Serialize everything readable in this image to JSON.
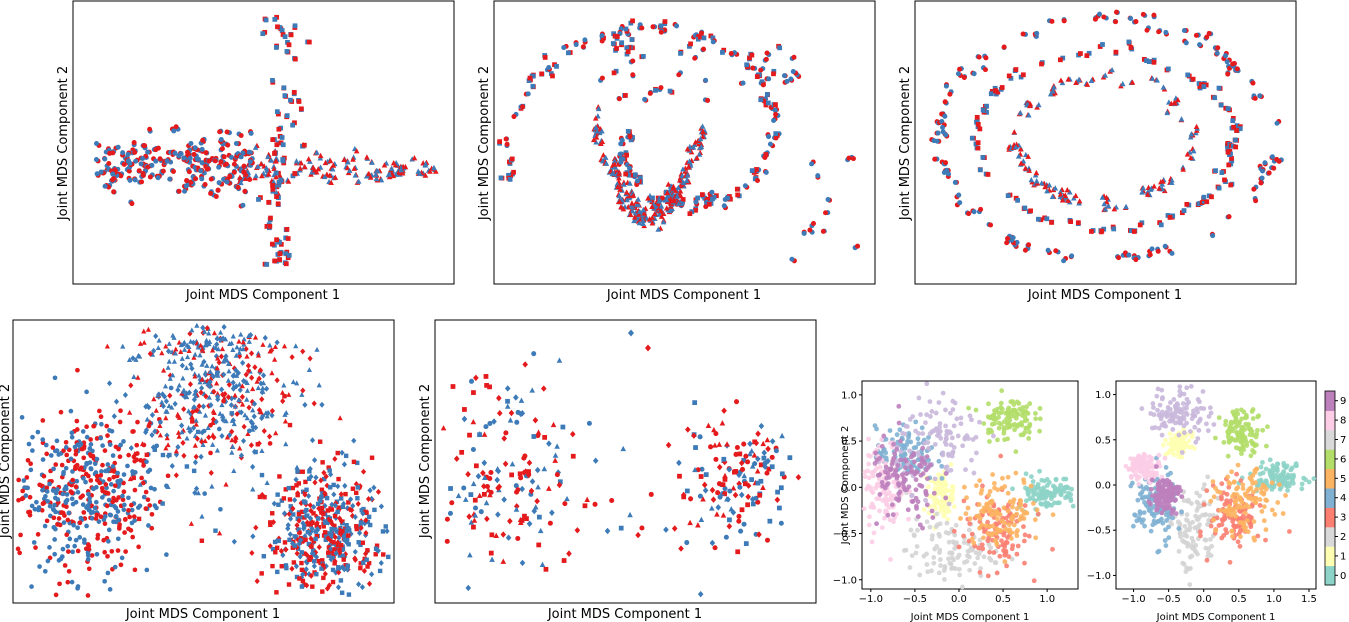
{
  "colors": {
    "red": "#e41a1c",
    "blue": "#3d7ab8"
  },
  "chart_data": [
    {
      "id": "p1",
      "type": "scatter",
      "xlabel": "Joint MDS Component 1",
      "ylabel": "Joint MDS Component 2",
      "shape": "cross",
      "axis_ticks": false,
      "grid": false,
      "markers": [
        "circle",
        "triangle",
        "square"
      ],
      "series_colors": [
        "red",
        "blue"
      ]
    },
    {
      "id": "p2",
      "type": "scatter",
      "xlabel": "Joint MDS Component 1",
      "ylabel": "Joint MDS Component 2",
      "shape": "swiss-roll",
      "axis_ticks": false,
      "grid": false,
      "markers": [
        "circle",
        "triangle",
        "square"
      ],
      "series_colors": [
        "red",
        "blue"
      ]
    },
    {
      "id": "p3",
      "type": "scatter",
      "xlabel": "Joint MDS Component 1",
      "ylabel": "Joint MDS Component 2",
      "shape": "concentric-rings",
      "axis_ticks": false,
      "grid": false,
      "markers": [
        "circle",
        "triangle",
        "square"
      ],
      "series_colors": [
        "red",
        "blue"
      ]
    },
    {
      "id": "p4",
      "type": "scatter",
      "xlabel": "Joint MDS Component 1",
      "ylabel": "Joint MDS Component 2",
      "shape": "three-clusters-dense",
      "axis_ticks": false,
      "grid": false,
      "markers": [
        "circle",
        "triangle",
        "square",
        "diamond"
      ],
      "series_colors": [
        "red",
        "blue"
      ]
    },
    {
      "id": "p5",
      "type": "scatter",
      "xlabel": "Joint MDS Component 1",
      "ylabel": "Joint MDS Component 2",
      "shape": "two-clusters-sparse",
      "axis_ticks": false,
      "grid": false,
      "markers": [
        "circle",
        "triangle",
        "square",
        "diamond"
      ],
      "series_colors": [
        "red",
        "blue"
      ]
    },
    {
      "id": "p6",
      "type": "scatter",
      "xlabel": "Joint MDS Component 1",
      "ylabel": "Joint MDS Component 2",
      "xlim": [
        -1.1,
        1.35
      ],
      "ylim": [
        -1.1,
        1.15
      ],
      "xticks": [
        "−1.0",
        "−0.5",
        "0.0",
        "0.5",
        "1.0"
      ],
      "yticks": [
        "−1.0",
        "−0.5",
        "0.0",
        "0.5",
        "1.0"
      ],
      "xtick_values": [
        -1.0,
        -0.5,
        0.0,
        0.5,
        1.0
      ],
      "ytick_values": [
        -1.0,
        -0.5,
        0.0,
        0.5,
        1.0
      ],
      "color_by": "digit class 0–9",
      "clusters": [
        {
          "cls": 0,
          "cx": 1.0,
          "cy": -0.05,
          "sx": 0.17,
          "sy": 0.09
        },
        {
          "cls": 1,
          "cx": -0.2,
          "cy": -0.08,
          "sx": 0.07,
          "sy": 0.12
        },
        {
          "cls": 2,
          "cx": -0.1,
          "cy": -0.7,
          "sx": 0.25,
          "sy": 0.18
        },
        {
          "cls": 3,
          "cx": 0.4,
          "cy": -0.45,
          "sx": 0.2,
          "sy": 0.22
        },
        {
          "cls": 4,
          "cx": -0.6,
          "cy": 0.35,
          "sx": 0.17,
          "sy": 0.15
        },
        {
          "cls": 5,
          "cx": 0.5,
          "cy": -0.25,
          "sx": 0.22,
          "sy": 0.18
        },
        {
          "cls": 6,
          "cx": 0.55,
          "cy": 0.75,
          "sx": 0.15,
          "sy": 0.12
        },
        {
          "cls": 7,
          "cx": -0.85,
          "cy": 0.0,
          "sx": 0.12,
          "sy": 0.25
        },
        {
          "cls": 8,
          "cx": -0.2,
          "cy": 0.5,
          "sx": 0.25,
          "sy": 0.25
        },
        {
          "cls": 9,
          "cx": -0.6,
          "cy": 0.05,
          "sx": 0.2,
          "sy": 0.25
        }
      ]
    },
    {
      "id": "p7",
      "type": "scatter",
      "xlabel": "Joint MDS Component 1",
      "ylabel": "",
      "xlim": [
        -1.25,
        1.6
      ],
      "ylim": [
        -1.15,
        1.15
      ],
      "xticks": [
        "−1.0",
        "−0.5",
        "0.0",
        "0.5",
        "1.0",
        "1.5"
      ],
      "yticks": [
        "−1.0",
        "−0.5",
        "0.0",
        "0.5",
        "1.0"
      ],
      "xtick_values": [
        -1.0,
        -0.5,
        0.0,
        0.5,
        1.0,
        1.5
      ],
      "ytick_values": [
        -1.0,
        -0.5,
        0.0,
        0.5,
        1.0
      ],
      "color_by": "digit class 0–9",
      "clusters": [
        {
          "cls": 0,
          "cx": 1.05,
          "cy": 0.1,
          "sx": 0.2,
          "sy": 0.07
        },
        {
          "cls": 1,
          "cx": -0.35,
          "cy": 0.45,
          "sx": 0.08,
          "sy": 0.06
        },
        {
          "cls": 2,
          "cx": -0.15,
          "cy": -0.5,
          "sx": 0.2,
          "sy": 0.25
        },
        {
          "cls": 3,
          "cx": 0.45,
          "cy": -0.35,
          "sx": 0.18,
          "sy": 0.18
        },
        {
          "cls": 4,
          "cx": -0.7,
          "cy": -0.25,
          "sx": 0.15,
          "sy": 0.2
        },
        {
          "cls": 5,
          "cx": 0.6,
          "cy": -0.2,
          "sx": 0.22,
          "sy": 0.17
        },
        {
          "cls": 6,
          "cx": 0.55,
          "cy": 0.6,
          "sx": 0.15,
          "sy": 0.12
        },
        {
          "cls": 7,
          "cx": -0.85,
          "cy": 0.2,
          "sx": 0.12,
          "sy": 0.07
        },
        {
          "cls": 8,
          "cx": -0.35,
          "cy": 0.8,
          "sx": 0.22,
          "sy": 0.15
        },
        {
          "cls": 9,
          "cx": -0.55,
          "cy": -0.1,
          "sx": 0.1,
          "sy": 0.1
        }
      ]
    }
  ],
  "colorbar": {
    "ticks": [
      "0",
      "1",
      "2",
      "3",
      "4",
      "5",
      "6",
      "7",
      "8",
      "9"
    ],
    "colors": [
      "#8dd3c7",
      "#ffffb3",
      "#d9d9d9",
      "#fb8072",
      "#80b1d3",
      "#fdb462",
      "#b3de69",
      "#d9d9d9",
      "#fccde5",
      "#bc80bd"
    ]
  }
}
